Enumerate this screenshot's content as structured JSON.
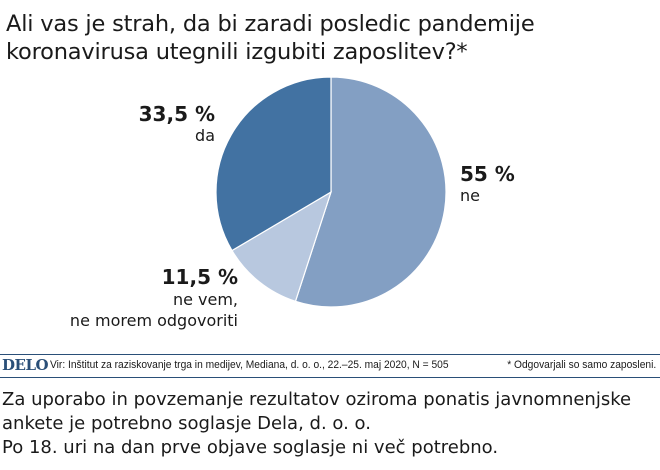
{
  "title": "Ali vas je strah, da bi zaradi posledic pandemije koronavirusa utegnili izgubiti zaposlitev?*",
  "chart_data": {
    "type": "pie",
    "slices": [
      {
        "label": "ne",
        "value": 55,
        "value_label": "55 %",
        "color": "#839fc3"
      },
      {
        "label": "ne vem, ne morem odgovoriti",
        "value": 11.5,
        "value_label": "11,5 %",
        "color": "#b8c8df"
      },
      {
        "label": "da",
        "value": 33.5,
        "value_label": "33,5 %",
        "color": "#4272a2"
      }
    ],
    "desc_lines": {
      "da": [
        "da"
      ],
      "ne": [
        "ne"
      ],
      "nevem": [
        "ne vem,",
        "ne morem odgovoriti"
      ]
    }
  },
  "source_bar": {
    "logo": "DELO",
    "source": "Vir: Inštitut za raziskovanje trga in medijev, Mediana, d. o. o., 22.–25. maj 2020, N = 505",
    "note": "* Odgovarjali so samo zaposleni."
  },
  "footer": {
    "line1": "Za uporabo in povzemanje rezultatov oziroma ponatis javnomnenjske",
    "line2": "ankete je potrebno soglasje Dela, d. o. o.",
    "line3": "Po 18. uri na dan prve objave soglasje ni več potrebno."
  }
}
